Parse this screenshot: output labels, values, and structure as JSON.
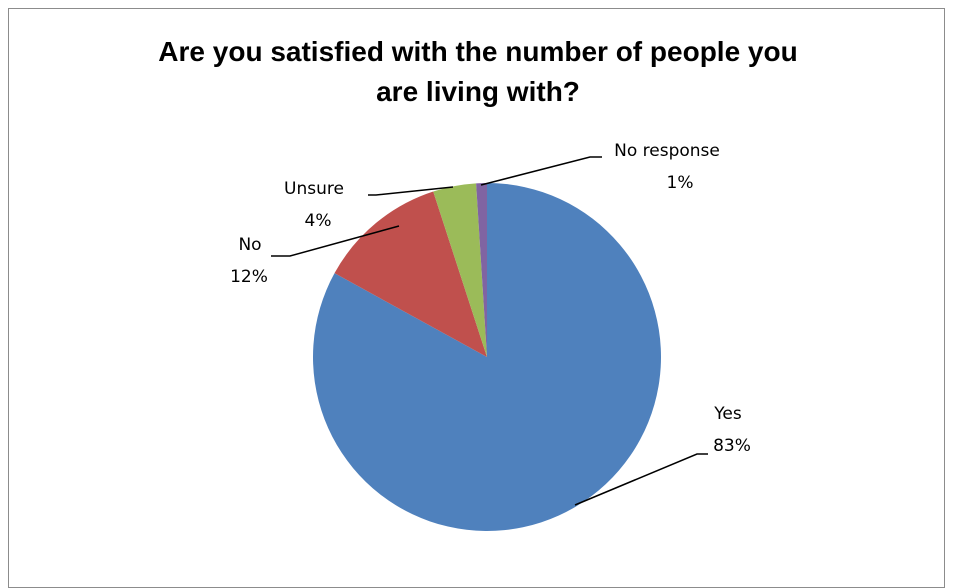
{
  "chart_data": {
    "type": "pie",
    "title_line1": "Are you satisfied with the number of people you",
    "title_line2": "are living with?",
    "slices": [
      {
        "label": "Yes",
        "value": 83,
        "display": "83%",
        "color": "#4F81BD"
      },
      {
        "label": "No",
        "value": 12,
        "display": "12%",
        "color": "#C0504D"
      },
      {
        "label": "Unsure",
        "value": 4,
        "display": "4%",
        "color": "#9BBB59"
      },
      {
        "label": "No response",
        "value": 1,
        "display": "1%",
        "color": "#8064A2"
      }
    ],
    "legend": "none",
    "data_labels": "category and percentage with leader lines"
  }
}
